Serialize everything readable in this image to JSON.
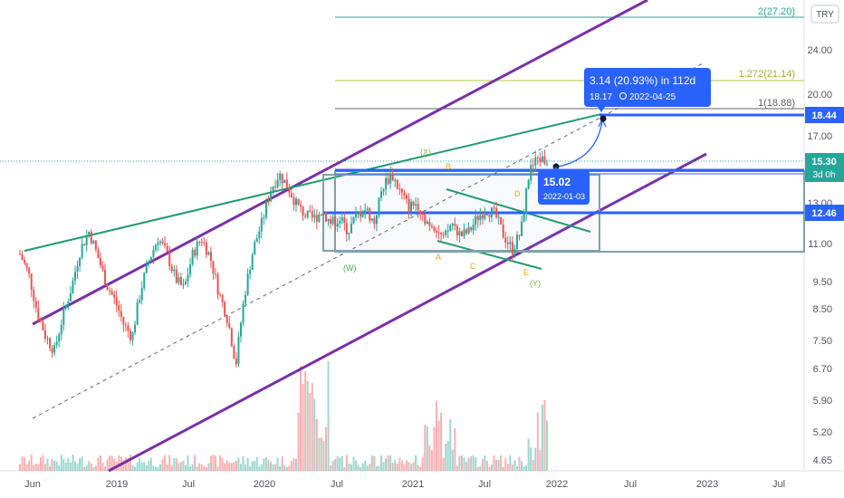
{
  "currency_button": "TRY",
  "chart_data": {
    "type": "candlestick",
    "title": "",
    "price_ticks": [
      "24.00",
      "20.00",
      "17.00",
      "13.00",
      "11.00",
      "9.50",
      "8.50",
      "7.50",
      "6.70",
      "5.90",
      "5.20",
      "4.65"
    ],
    "time_ticks": [
      "Jun",
      "2019",
      "Jul",
      "2020",
      "Jul",
      "2021",
      "Jul",
      "2022",
      "Jul",
      "2023",
      "Jul"
    ],
    "log_scale": true,
    "grid": false,
    "approx_close_series": [
      10.6,
      9.8,
      8.4,
      7.6,
      7.2,
      8.3,
      9.3,
      10.8,
      11.6,
      10.5,
      9.4,
      8.8,
      8.0,
      7.6,
      9.2,
      10.4,
      11.3,
      10.6,
      9.6,
      9.2,
      10.6,
      11.3,
      10.5,
      9.1,
      8.2,
      6.8,
      9.0,
      10.8,
      12.0,
      13.7,
      14.6,
      13.9,
      12.9,
      12.4,
      12.2,
      12.6,
      12.0,
      12.2,
      11.6,
      12.4,
      12.7,
      12.0,
      13.9,
      14.6,
      13.6,
      12.8,
      13.0,
      12.1,
      11.9,
      11.2,
      12.0,
      11.4,
      11.6,
      12.3,
      12.7,
      12.4,
      11.4,
      10.8,
      11.6,
      14.8,
      15.6,
      15.3
    ],
    "horizontal_levels": [
      {
        "label": "2(27.20)",
        "price": 27.2,
        "color": "#26a69a"
      },
      {
        "label": "1.272(21.14)",
        "price": 21.14,
        "color": "#b5c93a"
      },
      {
        "label": "1(18.88)",
        "price": 18.88,
        "color": "#5d606b"
      }
    ],
    "price_tags": [
      {
        "value": "18.44",
        "color": "#2962ff"
      },
      {
        "value": "15.30",
        "sub": "3d 0h",
        "color": "#26a69a"
      },
      {
        "value": "12.46",
        "color": "#2962ff"
      }
    ],
    "projection_label": "3.14 (20.93%) in 112d",
    "projection_sublabel": "18.17",
    "projection_date": "2022-04-25",
    "current_point_label": "15.02",
    "current_point_date": "2022-01-03",
    "wave_labels": [
      {
        "text": "(X)",
        "color": "#7cb342"
      },
      {
        "text": "B",
        "color": "#f6a21e"
      },
      {
        "text": "D",
        "color": "#f6a21e"
      },
      {
        "text": "(W)",
        "color": "#4caf50"
      },
      {
        "text": "A",
        "color": "#f6a21e"
      },
      {
        "text": "C",
        "color": "#f6a21e"
      },
      {
        "text": "E",
        "color": "#f6a21e"
      },
      {
        "text": "(Y)",
        "color": "#7cb342"
      }
    ]
  }
}
